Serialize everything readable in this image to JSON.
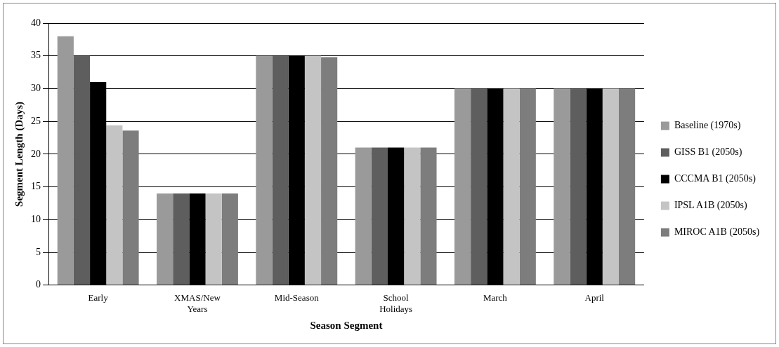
{
  "chart_data": {
    "type": "bar",
    "xlabel": "Season Segment",
    "ylabel": "Segment Length (Days)",
    "categories": [
      "Early",
      "XMAS/New Years",
      "Mid-Season",
      "School Holidays",
      "March",
      "April"
    ],
    "series": [
      {
        "name": "Baseline (1970s)",
        "color": "#9a9a9a",
        "values": [
          38,
          14,
          35,
          21,
          30,
          30
        ]
      },
      {
        "name": "GISS B1 (2050s)",
        "color": "#5e5e5e",
        "values": [
          35,
          14,
          35,
          21,
          30,
          30
        ]
      },
      {
        "name": "CCCMA B1 (2050s)",
        "color": "#000000",
        "values": [
          31,
          14,
          35,
          21,
          30,
          30
        ]
      },
      {
        "name": "IPSL A1B (2050s)",
        "color": "#c4c4c4",
        "values": [
          24.4,
          14,
          35,
          21,
          30,
          30
        ]
      },
      {
        "name": "MIROC A1B (2050s)",
        "color": "#7d7d7d",
        "values": [
          23.6,
          14,
          34.8,
          21,
          30,
          30
        ]
      }
    ],
    "ylim": [
      0,
      40
    ],
    "yticks": [
      0,
      5,
      10,
      15,
      20,
      25,
      30,
      35,
      40
    ],
    "grid": "y",
    "legend": "right"
  }
}
